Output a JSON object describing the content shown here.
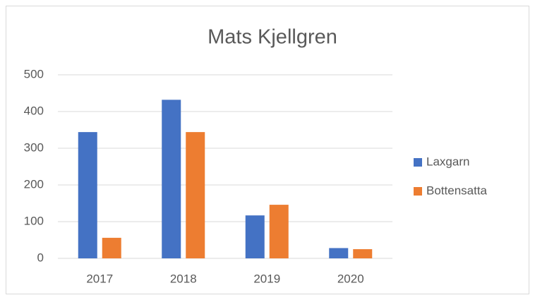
{
  "chart_data": {
    "type": "bar",
    "title": "Mats Kjellgren",
    "categories": [
      "2017",
      "2018",
      "2019",
      "2020"
    ],
    "series": [
      {
        "name": "Laxgarn",
        "color": "#4472c4",
        "values": [
          344,
          432,
          117,
          28
        ]
      },
      {
        "name": "Bottensatta",
        "color": "#ed7d31",
        "values": [
          56,
          344,
          146,
          25
        ]
      }
    ],
    "ylim": [
      0,
      500
    ],
    "yticks": [
      0,
      100,
      200,
      300,
      400,
      500
    ],
    "grid": true,
    "legend": "right"
  }
}
